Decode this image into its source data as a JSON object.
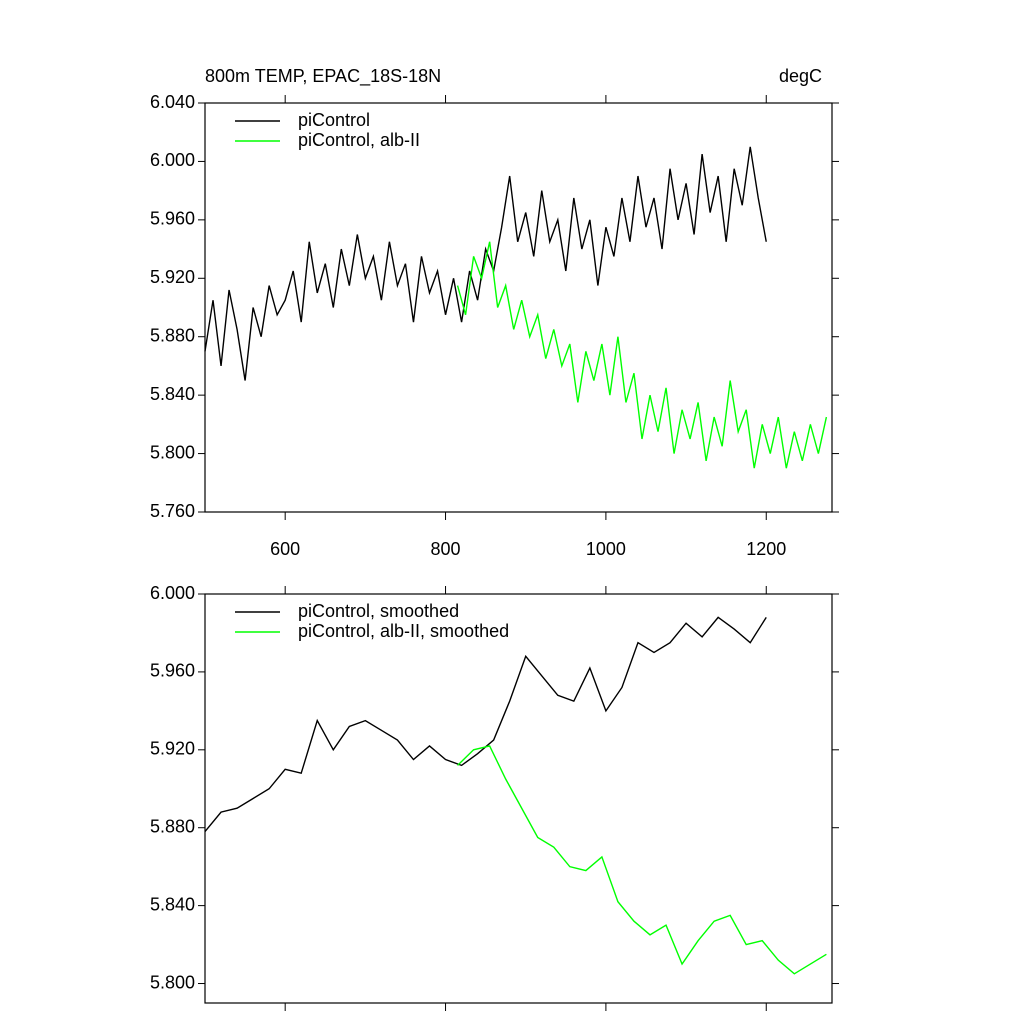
{
  "chart_data": [
    {
      "type": "line",
      "title": "800m TEMP, EPAC_18S-18N",
      "units": "degC",
      "xlim": [
        500,
        1282
      ],
      "xticks": [
        600,
        800,
        1000,
        1200
      ],
      "ylim": [
        5.76,
        6.04
      ],
      "yticks": [
        {
          "value": 5.76,
          "label": "5.760"
        },
        {
          "value": 5.8,
          "label": "5.800"
        },
        {
          "value": 5.84,
          "label": "5.840"
        },
        {
          "value": 5.88,
          "label": "5.880"
        },
        {
          "value": 5.92,
          "label": "5.920"
        },
        {
          "value": 5.96,
          "label": "5.960"
        },
        {
          "value": 6.0,
          "label": "6.000"
        },
        {
          "value": 6.04,
          "label": "6.040"
        }
      ],
      "series": [
        {
          "name": "piControl",
          "color": "#000000",
          "x": [
            500,
            510,
            520,
            530,
            540,
            550,
            560,
            570,
            580,
            590,
            600,
            610,
            620,
            630,
            640,
            650,
            660,
            670,
            680,
            690,
            700,
            710,
            720,
            730,
            740,
            750,
            760,
            770,
            780,
            790,
            800,
            810,
            820,
            830,
            840,
            850,
            860,
            870,
            880,
            890,
            900,
            910,
            920,
            930,
            940,
            950,
            960,
            970,
            980,
            990,
            1000,
            1010,
            1020,
            1030,
            1040,
            1050,
            1060,
            1070,
            1080,
            1090,
            1100,
            1110,
            1120,
            1130,
            1140,
            1150,
            1160,
            1170,
            1180,
            1190,
            1200
          ],
          "values": [
            5.87,
            5.905,
            5.86,
            5.912,
            5.885,
            5.85,
            5.9,
            5.88,
            5.915,
            5.895,
            5.905,
            5.925,
            5.89,
            5.945,
            5.91,
            5.93,
            5.9,
            5.94,
            5.915,
            5.95,
            5.92,
            5.935,
            5.905,
            5.945,
            5.915,
            5.93,
            5.89,
            5.935,
            5.91,
            5.925,
            5.895,
            5.92,
            5.89,
            5.925,
            5.905,
            5.94,
            5.925,
            5.955,
            5.99,
            5.945,
            5.965,
            5.935,
            5.98,
            5.945,
            5.96,
            5.925,
            5.975,
            5.94,
            5.96,
            5.915,
            5.955,
            5.935,
            5.975,
            5.945,
            5.99,
            5.955,
            5.975,
            5.94,
            5.995,
            5.96,
            5.985,
            5.95,
            6.005,
            5.965,
            5.99,
            5.945,
            5.995,
            5.97,
            6.01,
            5.975,
            5.945
          ]
        },
        {
          "name": "piControl, alb-II",
          "color": "#00ff00",
          "x": [
            815,
            825,
            835,
            845,
            855,
            865,
            875,
            885,
            895,
            905,
            915,
            925,
            935,
            945,
            955,
            965,
            975,
            985,
            995,
            1005,
            1015,
            1025,
            1035,
            1045,
            1055,
            1065,
            1075,
            1085,
            1095,
            1105,
            1115,
            1125,
            1135,
            1145,
            1155,
            1165,
            1175,
            1185,
            1195,
            1205,
            1215,
            1225,
            1235,
            1245,
            1255,
            1265,
            1275
          ],
          "values": [
            5.915,
            5.895,
            5.935,
            5.92,
            5.945,
            5.9,
            5.915,
            5.885,
            5.905,
            5.88,
            5.895,
            5.865,
            5.885,
            5.86,
            5.875,
            5.835,
            5.87,
            5.85,
            5.875,
            5.84,
            5.88,
            5.835,
            5.855,
            5.81,
            5.84,
            5.815,
            5.845,
            5.8,
            5.83,
            5.81,
            5.835,
            5.795,
            5.825,
            5.805,
            5.85,
            5.815,
            5.83,
            5.79,
            5.82,
            5.8,
            5.825,
            5.79,
            5.815,
            5.795,
            5.82,
            5.8,
            5.825
          ]
        }
      ]
    },
    {
      "type": "line",
      "xlim": [
        500,
        1282
      ],
      "xticks": [
        600,
        800,
        1000,
        1200
      ],
      "ylim": [
        5.79,
        6.0
      ],
      "yticks": [
        {
          "value": 5.8,
          "label": "5.800"
        },
        {
          "value": 5.84,
          "label": "5.840"
        },
        {
          "value": 5.88,
          "label": "5.880"
        },
        {
          "value": 5.92,
          "label": "5.920"
        },
        {
          "value": 5.96,
          "label": "5.960"
        },
        {
          "value": 6.0,
          "label": "6.000"
        }
      ],
      "series": [
        {
          "name": "piControl, smoothed",
          "color": "#000000",
          "x": [
            500,
            520,
            540,
            560,
            580,
            600,
            620,
            640,
            660,
            680,
            700,
            720,
            740,
            760,
            780,
            800,
            820,
            840,
            860,
            880,
            900,
            920,
            940,
            960,
            980,
            1000,
            1020,
            1040,
            1060,
            1080,
            1100,
            1120,
            1140,
            1160,
            1180,
            1200
          ],
          "values": [
            5.878,
            5.888,
            5.89,
            5.895,
            5.9,
            5.91,
            5.908,
            5.935,
            5.92,
            5.932,
            5.935,
            5.93,
            5.925,
            5.915,
            5.922,
            5.915,
            5.912,
            5.918,
            5.925,
            5.945,
            5.968,
            5.958,
            5.948,
            5.945,
            5.962,
            5.94,
            5.952,
            5.975,
            5.97,
            5.975,
            5.985,
            5.978,
            5.988,
            5.982,
            5.975,
            5.988
          ]
        },
        {
          "name": "piControl, alb-II, smoothed",
          "color": "#00ff00",
          "x": [
            815,
            835,
            855,
            875,
            895,
            915,
            935,
            955,
            975,
            995,
            1015,
            1035,
            1055,
            1075,
            1095,
            1115,
            1135,
            1155,
            1175,
            1195,
            1215,
            1235,
            1255,
            1275
          ],
          "values": [
            5.912,
            5.92,
            5.922,
            5.905,
            5.89,
            5.875,
            5.87,
            5.86,
            5.858,
            5.865,
            5.842,
            5.832,
            5.825,
            5.83,
            5.81,
            5.822,
            5.832,
            5.835,
            5.82,
            5.822,
            5.812,
            5.805,
            5.81,
            5.815
          ]
        }
      ]
    }
  ]
}
